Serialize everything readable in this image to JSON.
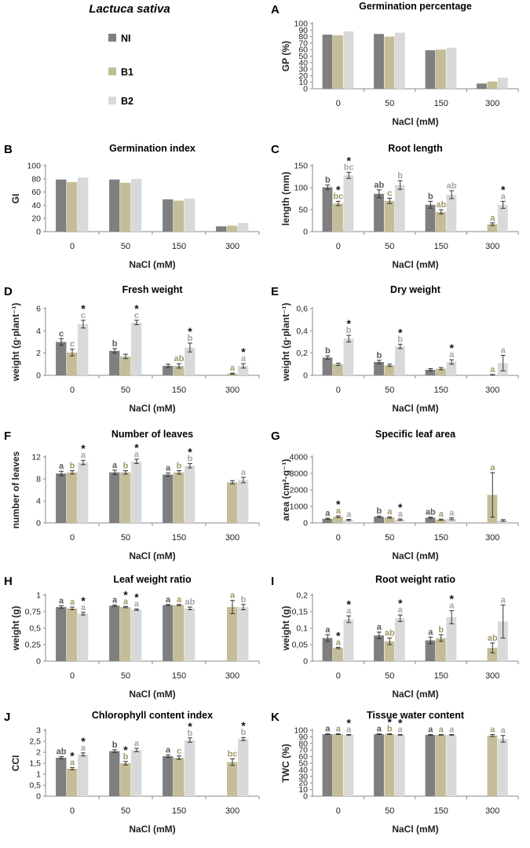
{
  "figure": {
    "species": "Lactuca sativa",
    "legend": [
      {
        "name": "NI",
        "color": "#7f7f7f"
      },
      {
        "name": "B1",
        "color": "#c4bd97"
      },
      {
        "name": "B2",
        "color": "#d9d9d9"
      }
    ]
  },
  "colors": {
    "NI": "#7f7f7f",
    "B1": "#c4bd97",
    "B2": "#d9d9d9",
    "ann_B1": "#a09868",
    "ann_B2": "#a6a6a6",
    "ann_NI": "#595959"
  },
  "chart_data": [
    {
      "panel": "A",
      "type": "bar",
      "title": "Germination percentage",
      "xlabel": "NaCl (mM)",
      "ylabel": "GP (%)",
      "categories": [
        "0",
        "50",
        "150",
        "300"
      ],
      "ylim": [
        0,
        100
      ],
      "yticks": [
        "0",
        "10",
        "20",
        "30",
        "40",
        "50",
        "60",
        "70",
        "80",
        "90",
        "100"
      ],
      "series": [
        {
          "name": "NI",
          "values": [
            83,
            84,
            59,
            8
          ],
          "err": [
            0,
            0,
            0,
            0
          ]
        },
        {
          "name": "B1",
          "values": [
            82,
            80,
            60,
            11
          ],
          "err": [
            0,
            0,
            0,
            0
          ]
        },
        {
          "name": "B2",
          "values": [
            88,
            86,
            63,
            17
          ],
          "err": [
            0,
            0,
            0,
            0
          ]
        }
      ],
      "annotations": []
    },
    {
      "panel": "B",
      "type": "bar",
      "title": "Germination index",
      "xlabel": "NaCl (mM)",
      "ylabel": "GI",
      "categories": [
        "0",
        "50",
        "150",
        "300"
      ],
      "ylim": [
        0,
        100
      ],
      "yticks": [
        "0",
        "20",
        "40",
        "60",
        "80",
        "100"
      ],
      "series": [
        {
          "name": "NI",
          "values": [
            79,
            79,
            49,
            8
          ],
          "err": [
            0,
            0,
            0,
            0
          ]
        },
        {
          "name": "B1",
          "values": [
            75,
            74,
            47,
            9
          ],
          "err": [
            0,
            0,
            0,
            0
          ]
        },
        {
          "name": "B2",
          "values": [
            82,
            80,
            50,
            13
          ],
          "err": [
            0,
            0,
            0,
            0
          ]
        }
      ],
      "annotations": []
    },
    {
      "panel": "C",
      "type": "bar",
      "title": "Root length",
      "xlabel": "NaCl (mM)",
      "ylabel": "length (mm)",
      "categories": [
        "0",
        "50",
        "150",
        "300"
      ],
      "ylim": [
        0,
        150
      ],
      "yticks": [
        "0",
        "50",
        "100",
        "150"
      ],
      "series": [
        {
          "name": "NI",
          "values": [
            101,
            86,
            61,
            0
          ],
          "err": [
            5,
            9,
            8,
            0
          ]
        },
        {
          "name": "B1",
          "values": [
            64,
            70,
            45,
            17
          ],
          "err": [
            5,
            6,
            5,
            3
          ]
        },
        {
          "name": "B2",
          "values": [
            128,
            106,
            84,
            61
          ],
          "err": [
            7,
            10,
            9,
            8
          ]
        }
      ],
      "annotations": [
        [
          [
            "b"
          ],
          [
            "bc",
            "*"
          ],
          [
            "bc",
            "*"
          ]
        ],
        [
          [
            "ab"
          ],
          [
            "c"
          ],
          [
            "b"
          ]
        ],
        [
          [
            "b"
          ],
          [
            "ab"
          ],
          [
            "ab"
          ]
        ],
        [
          [],
          [
            "a"
          ],
          [
            "a",
            "*"
          ]
        ]
      ]
    },
    {
      "panel": "D",
      "type": "bar",
      "title": "Fresh weight",
      "xlabel": "NaCl (mM)",
      "ylabel": "weight (g·plant⁻¹)",
      "categories": [
        "0",
        "50",
        "150",
        "300"
      ],
      "ylim": [
        0,
        6
      ],
      "yticks": [
        "0",
        "2",
        "4",
        "6"
      ],
      "series": [
        {
          "name": "NI",
          "values": [
            3.0,
            2.2,
            0.85,
            0
          ],
          "err": [
            0.3,
            0.2,
            0.15,
            0
          ]
        },
        {
          "name": "B1",
          "values": [
            2.05,
            1.7,
            0.85,
            0.15
          ],
          "err": [
            0.3,
            0.2,
            0.2,
            0.05
          ]
        },
        {
          "name": "B2",
          "values": [
            4.6,
            4.75,
            2.5,
            0.85
          ],
          "err": [
            0.35,
            0.2,
            0.4,
            0.2
          ]
        }
      ],
      "annotations": [
        [
          [
            "c"
          ],
          [
            "c"
          ],
          [
            "c",
            "*"
          ]
        ],
        [
          [
            "b"
          ],
          [],
          [
            "c",
            "*"
          ]
        ],
        [
          [],
          [
            "ab"
          ],
          [
            "b",
            "*"
          ]
        ],
        [
          [],
          [
            "a"
          ],
          [
            "a",
            "*"
          ]
        ]
      ]
    },
    {
      "panel": "E",
      "type": "bar",
      "title": "Dry weight",
      "xlabel": "NaCl (mM)",
      "ylabel": "weight (g·plant⁻¹)",
      "categories": [
        "0",
        "50",
        "150",
        "300"
      ],
      "ylim": [
        0,
        0.6
      ],
      "yticks": [
        "0",
        "0,2",
        "0,4",
        "0,6"
      ],
      "series": [
        {
          "name": "NI",
          "values": [
            0.16,
            0.12,
            0.05,
            0
          ],
          "err": [
            0.015,
            0.015,
            0.01,
            0
          ]
        },
        {
          "name": "B1",
          "values": [
            0.1,
            0.09,
            0.06,
            0.005
          ],
          "err": [
            0.01,
            0.01,
            0.01,
            0.002
          ]
        },
        {
          "name": "B2",
          "values": [
            0.33,
            0.26,
            0.12,
            0.11
          ],
          "err": [
            0.03,
            0.02,
            0.02,
            0.07
          ]
        }
      ],
      "annotations": [
        [
          [
            "b"
          ],
          [],
          [
            "b",
            "*"
          ]
        ],
        [
          [
            "b"
          ],
          [],
          [
            "b",
            "*"
          ]
        ],
        [
          [],
          [],
          [
            "a",
            "*"
          ]
        ],
        [
          [],
          [
            "a"
          ],
          [
            "a"
          ]
        ]
      ]
    },
    {
      "panel": "F",
      "type": "bar",
      "title": "Number of leaves",
      "xlabel": "NaCl (mM)",
      "ylabel": "number of leaves",
      "categories": [
        "0",
        "50",
        "150",
        "300"
      ],
      "ylim": [
        0,
        12
      ],
      "yticks": [
        "0",
        "4",
        "8",
        "12"
      ],
      "series": [
        {
          "name": "NI",
          "values": [
            9.0,
            9.2,
            8.8,
            0
          ],
          "err": [
            0.4,
            0.4,
            0.3,
            0
          ]
        },
        {
          "name": "B1",
          "values": [
            9.2,
            9.2,
            9.2,
            7.4
          ],
          "err": [
            0.3,
            0.3,
            0.3,
            0.3
          ]
        },
        {
          "name": "B2",
          "values": [
            11.0,
            11.2,
            10.4,
            7.8
          ],
          "err": [
            0.4,
            0.4,
            0.4,
            0.5
          ]
        }
      ],
      "annotations": [
        [
          [
            "a"
          ],
          [
            "b"
          ],
          [
            "a",
            "*"
          ]
        ],
        [
          [
            "a"
          ],
          [
            "b"
          ],
          [
            "a",
            "*"
          ]
        ],
        [
          [
            "a"
          ],
          [
            "b"
          ],
          [
            "b",
            "*"
          ]
        ],
        [
          [],
          [],
          [
            "a"
          ]
        ]
      ]
    },
    {
      "panel": "G",
      "type": "bar",
      "title": "Specific leaf area",
      "xlabel": "NaCl (mM)",
      "ylabel": "area (cm²·g⁻¹)",
      "categories": [
        "0",
        "50",
        "150",
        "300"
      ],
      "ylim": [
        0,
        4000
      ],
      "yticks": [
        "0",
        "1000",
        "2000",
        "3000",
        "4000"
      ],
      "series": [
        {
          "name": "NI",
          "values": [
            250,
            380,
            320,
            0
          ],
          "err": [
            40,
            40,
            30,
            0
          ]
        },
        {
          "name": "B1",
          "values": [
            380,
            330,
            200,
            1700
          ],
          "err": [
            50,
            40,
            30,
            1350
          ]
        },
        {
          "name": "B2",
          "values": [
            180,
            200,
            250,
            150
          ],
          "err": [
            30,
            40,
            60,
            50
          ]
        }
      ],
      "annotations": [
        [
          [
            "a"
          ],
          [
            "a",
            "*"
          ],
          [
            "a"
          ]
        ],
        [
          [
            "b"
          ],
          [
            "a"
          ],
          [
            "a",
            "*"
          ]
        ],
        [
          [
            "ab"
          ],
          [
            "a"
          ],
          [
            "a"
          ]
        ],
        [
          [],
          [
            "a"
          ],
          []
        ]
      ]
    },
    {
      "panel": "H",
      "type": "bar",
      "title": "Leaf weight ratio",
      "xlabel": "NaCl (mM)",
      "ylabel": "weight (g)",
      "categories": [
        "0",
        "50",
        "150",
        "300"
      ],
      "ylim": [
        0,
        1
      ],
      "yticks": [
        "0",
        "0,25",
        "0,5",
        "0,75",
        "1"
      ],
      "series": [
        {
          "name": "NI",
          "values": [
            0.82,
            0.84,
            0.85,
            0
          ],
          "err": [
            0.02,
            0.01,
            0.01,
            0
          ]
        },
        {
          "name": "B1",
          "values": [
            0.8,
            0.82,
            0.85,
            0.82
          ],
          "err": [
            0.02,
            0.01,
            0.01,
            0.1
          ]
        },
        {
          "name": "B2",
          "values": [
            0.72,
            0.78,
            0.8,
            0.82
          ],
          "err": [
            0.02,
            0.01,
            0.02,
            0.04
          ]
        }
      ],
      "annotations": [
        [
          [
            "a"
          ],
          [
            "a"
          ],
          [
            "a",
            "*"
          ]
        ],
        [
          [
            "a"
          ],
          [
            "a",
            "*"
          ],
          [
            "a",
            "*"
          ]
        ],
        [
          [
            "a"
          ],
          [
            "a"
          ],
          [
            "ab"
          ]
        ],
        [
          [],
          [
            "a"
          ],
          [
            "b"
          ]
        ]
      ]
    },
    {
      "panel": "I",
      "type": "bar",
      "title": "Root weight ratio",
      "xlabel": "NaCl (mM)",
      "ylabel": "weight (g)",
      "categories": [
        "0",
        "50",
        "150",
        "300"
      ],
      "ylim": [
        0,
        0.2
      ],
      "yticks": [
        "0",
        "0,05",
        "0,1",
        "0,15",
        "0,2"
      ],
      "series": [
        {
          "name": "NI",
          "values": [
            0.07,
            0.078,
            0.063,
            0
          ],
          "err": [
            0.01,
            0.01,
            0.01,
            0
          ]
        },
        {
          "name": "B1",
          "values": [
            0.04,
            0.06,
            0.07,
            0.04
          ],
          "err": [
            0.002,
            0.01,
            0.01,
            0.015
          ]
        },
        {
          "name": "B2",
          "values": [
            0.127,
            0.13,
            0.133,
            0.12
          ],
          "err": [
            0.01,
            0.01,
            0.02,
            0.05
          ]
        }
      ],
      "annotations": [
        [
          [
            "a"
          ],
          [
            "a",
            "*"
          ],
          [
            "a",
            "*"
          ]
        ],
        [
          [
            "a"
          ],
          [
            "ab"
          ],
          [
            "a",
            "*"
          ]
        ],
        [
          [
            "a"
          ],
          [
            "b"
          ],
          [
            "a",
            "*"
          ]
        ],
        [
          [],
          [
            "ab"
          ],
          [
            "a"
          ]
        ]
      ]
    },
    {
      "panel": "J",
      "type": "bar",
      "title": "Chlorophyll content index",
      "xlabel": "NaCl (mM)",
      "ylabel": "CCI",
      "categories": [
        "0",
        "50",
        "150",
        "300"
      ],
      "ylim": [
        0,
        3
      ],
      "yticks": [
        "0",
        "0,5",
        "1",
        "1,5",
        "2",
        "2,5",
        "3"
      ],
      "series": [
        {
          "name": "NI",
          "values": [
            1.75,
            2.05,
            1.82,
            0
          ],
          "err": [
            0.05,
            0.06,
            0.06,
            0
          ]
        },
        {
          "name": "B1",
          "values": [
            1.25,
            1.5,
            1.75,
            1.55
          ],
          "err": [
            0.05,
            0.08,
            0.08,
            0.15
          ]
        },
        {
          "name": "B2",
          "values": [
            1.9,
            2.1,
            2.55,
            2.6
          ],
          "err": [
            0.07,
            0.08,
            0.1,
            0.07
          ]
        }
      ],
      "annotations": [
        [
          [
            "ab"
          ],
          [
            "a",
            "*"
          ],
          [
            "a",
            "*"
          ]
        ],
        [
          [
            "b"
          ],
          [
            "b",
            "*"
          ],
          [
            "a"
          ]
        ],
        [
          [
            "a"
          ],
          [
            "c"
          ],
          [
            "b",
            "*"
          ]
        ],
        [
          [],
          [
            "bc"
          ],
          [
            "b",
            "*"
          ]
        ]
      ]
    },
    {
      "panel": "K",
      "type": "bar",
      "title": "Tissue water content",
      "xlabel": "NaCl (mM)",
      "ylabel": "TWC (%)",
      "categories": [
        "0",
        "50",
        "150",
        "300"
      ],
      "ylim": [
        0,
        100
      ],
      "yticks": [
        "0",
        "10",
        "20",
        "30",
        "40",
        "50",
        "60",
        "70",
        "80",
        "90",
        "100"
      ],
      "series": [
        {
          "name": "NI",
          "values": [
            94,
            94,
            93,
            0
          ],
          "err": [
            0.5,
            0.5,
            0.5,
            0
          ]
        },
        {
          "name": "B1",
          "values": [
            94,
            94,
            93,
            92
          ],
          "err": [
            0.5,
            0.5,
            0.5,
            1.5
          ]
        },
        {
          "name": "B2",
          "values": [
            93,
            93,
            93,
            87
          ],
          "err": [
            0.5,
            0.5,
            0.5,
            5
          ]
        }
      ],
      "annotations": [
        [
          [
            "a"
          ],
          [
            "a"
          ],
          [
            "a",
            "*"
          ]
        ],
        [
          [
            "a"
          ],
          [
            "b",
            "*"
          ],
          [
            "a",
            "*"
          ]
        ],
        [
          [
            "a"
          ],
          [
            "a"
          ],
          [
            "a"
          ]
        ],
        [
          [],
          [
            "a"
          ],
          [
            "a"
          ]
        ]
      ]
    }
  ]
}
